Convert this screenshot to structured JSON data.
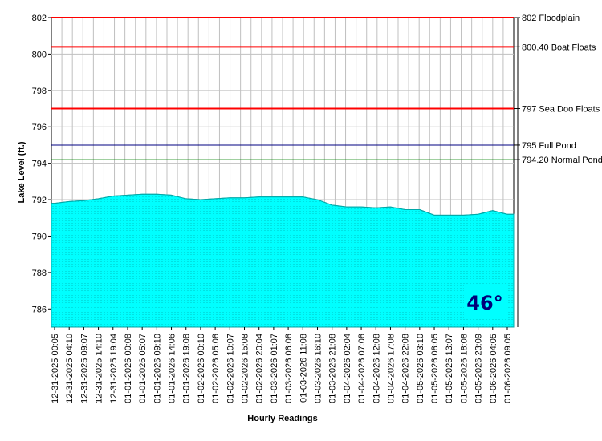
{
  "chart_data": {
    "type": "area",
    "ylabel": "Lake Level (ft.)",
    "xlabel": "Hourly Readings",
    "ylim": [
      785,
      802
    ],
    "yticks": [
      786,
      788,
      790,
      792,
      794,
      796,
      798,
      800,
      802
    ],
    "grid": true,
    "colors": {
      "fill": "#00ffff",
      "background": "#ffffff",
      "grid": "#c0c0c0"
    },
    "x": [
      "12-31-2025 00:05",
      "12-31-2025 04:10",
      "12-31-2025 09:07",
      "12-31-2025 14:10",
      "12-31-2025 19:04",
      "01-01-2026 00:08",
      "01-01-2026 05:07",
      "01-01-2026 09:10",
      "01-01-2026 14:06",
      "01-01-2026 19:08",
      "01-02-2026 00:10",
      "01-02-2026 05:08",
      "01-02-2026 10:07",
      "01-02-2026 15:08",
      "01-02-2026 20:04",
      "01-03-2026 01:07",
      "01-03-2026 06:08",
      "01-03-2026 11:08",
      "01-03-2026 16:10",
      "01-03-2026 21:08",
      "01-04-2026 02:04",
      "01-04-2026 07:08",
      "01-04-2026 12:08",
      "01-04-2026 17:08",
      "01-04-2026 22:08",
      "01-05-2026 03:10",
      "01-05-2026 08:05",
      "01-05-2026 13:07",
      "01-05-2026 18:08",
      "01-05-2026 23:09",
      "01-06-2026 04:05",
      "01-06-2026 09:05"
    ],
    "series": [
      {
        "values": [
          791.8,
          791.9,
          791.95,
          792.05,
          792.2,
          792.25,
          792.3,
          792.3,
          792.25,
          792.05,
          792.0,
          792.05,
          792.1,
          792.1,
          792.15,
          792.15,
          792.15,
          792.15,
          792.0,
          791.7,
          791.6,
          791.6,
          791.55,
          791.6,
          791.45,
          791.45,
          791.15,
          791.15,
          791.15,
          791.2,
          791.4,
          791.2
        ]
      }
    ],
    "reference_lines": [
      {
        "value": 802,
        "label": "802 Floodplain",
        "color": "#ff0000"
      },
      {
        "value": 800.4,
        "label": "800.40 Boat Floats",
        "color": "#ff0000"
      },
      {
        "value": 797,
        "label": "797 Sea Doo Floats",
        "color": "#ff0000"
      },
      {
        "value": 795,
        "label": "795 Full Pond",
        "color": "#000080"
      },
      {
        "value": 794.2,
        "label": "794.20 Normal Pond",
        "color": "#008000"
      }
    ],
    "annotation": {
      "text": "46°",
      "background": "#00ffff",
      "color": "#00007a"
    }
  }
}
